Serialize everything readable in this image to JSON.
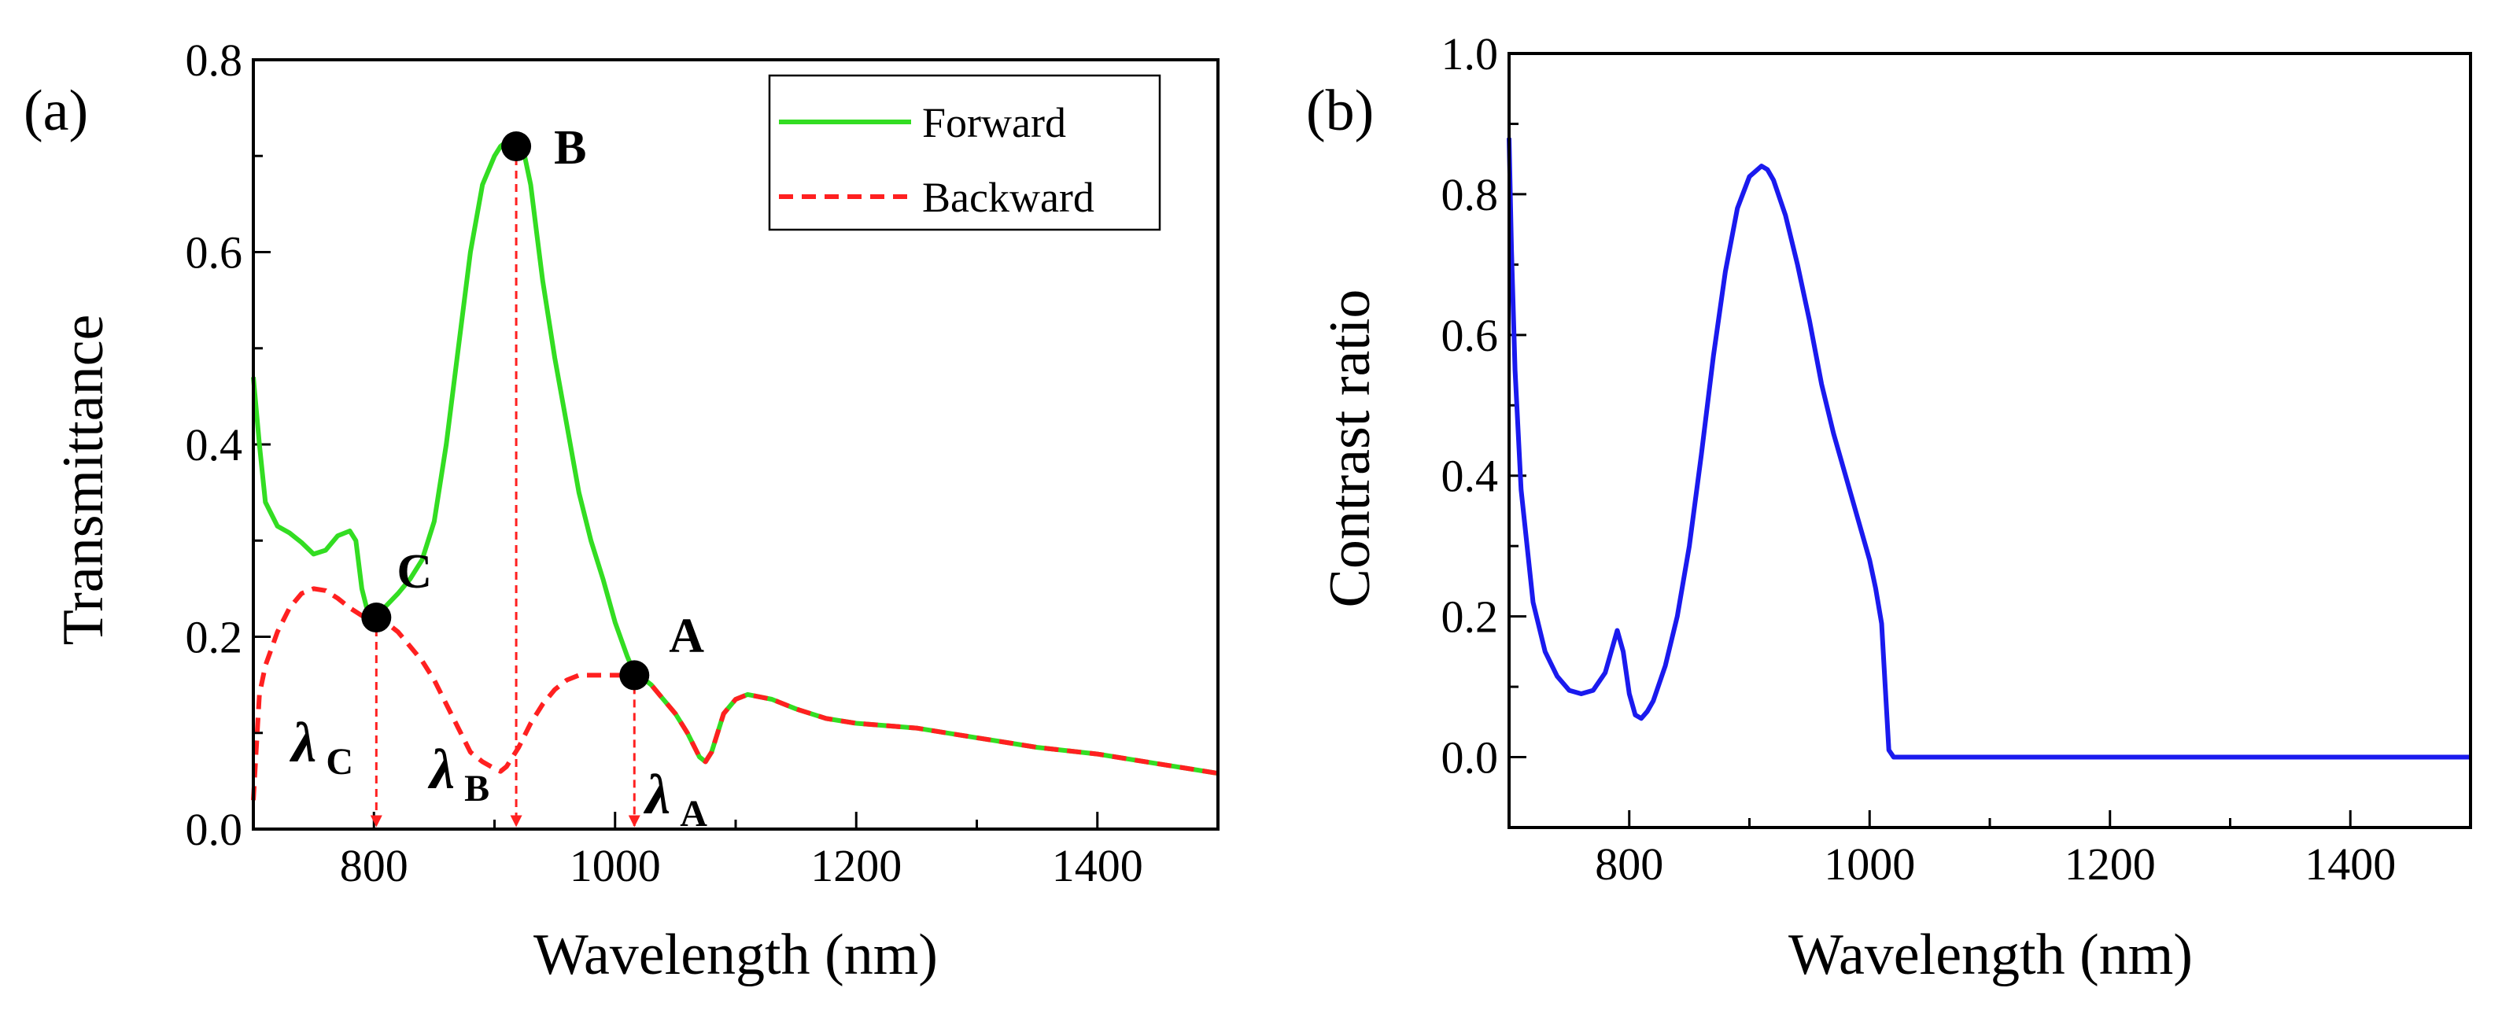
{
  "chart_data": [
    {
      "type": "line",
      "panel_label": "(a)",
      "xlabel": "Wavelength (nm)",
      "ylabel": "Transmittance",
      "xlim": [
        700,
        1500
      ],
      "ylim": [
        0.0,
        0.8
      ],
      "xticks": [
        800,
        1000,
        1200,
        1400
      ],
      "xtick_labels": [
        "800",
        "1000",
        "1200",
        "1400"
      ],
      "yticks": [
        0.0,
        0.2,
        0.4,
        0.6,
        0.8
      ],
      "ytick_labels": [
        "0.0",
        "0.2",
        "0.4",
        "0.6",
        "0.8"
      ],
      "grid": false,
      "legend_position": "top-right",
      "series": [
        {
          "name": "Forward",
          "color": "#33dd22",
          "style": "solid",
          "x": [
            700,
            705,
            710,
            720,
            730,
            740,
            750,
            760,
            770,
            780,
            785,
            790,
            795,
            800,
            805,
            810,
            820,
            830,
            840,
            850,
            860,
            870,
            880,
            890,
            900,
            905,
            910,
            915,
            920,
            925,
            930,
            935,
            940,
            950,
            960,
            970,
            980,
            990,
            1000,
            1010,
            1015,
            1020,
            1030,
            1040,
            1050,
            1060,
            1070,
            1075,
            1080,
            1090,
            1100,
            1110,
            1130,
            1150,
            1175,
            1200,
            1250,
            1300,
            1350,
            1400,
            1450,
            1500
          ],
          "y": [
            0.47,
            0.4,
            0.34,
            0.315,
            0.308,
            0.298,
            0.286,
            0.29,
            0.305,
            0.31,
            0.3,
            0.25,
            0.225,
            0.22,
            0.224,
            0.232,
            0.245,
            0.26,
            0.28,
            0.32,
            0.4,
            0.5,
            0.6,
            0.67,
            0.7,
            0.71,
            0.715,
            0.712,
            0.705,
            0.7,
            0.67,
            0.62,
            0.57,
            0.49,
            0.42,
            0.35,
            0.3,
            0.26,
            0.215,
            0.18,
            0.165,
            0.16,
            0.15,
            0.135,
            0.12,
            0.1,
            0.075,
            0.07,
            0.08,
            0.12,
            0.135,
            0.14,
            0.135,
            0.125,
            0.115,
            0.11,
            0.105,
            0.095,
            0.085,
            0.078,
            0.068,
            0.058
          ]
        },
        {
          "name": "Backward",
          "color": "#ff2020",
          "style": "dashed",
          "x": [
            700,
            705,
            710,
            720,
            730,
            740,
            750,
            760,
            770,
            780,
            790,
            800,
            810,
            820,
            830,
            840,
            850,
            860,
            870,
            880,
            890,
            900,
            905,
            910,
            915,
            920,
            930,
            940,
            950,
            960,
            970,
            980,
            990,
            1000,
            1010,
            1020,
            1030,
            1040,
            1050,
            1060,
            1070,
            1075,
            1080,
            1090,
            1100,
            1110,
            1130,
            1150,
            1175,
            1200,
            1250,
            1300,
            1350,
            1400,
            1450,
            1500
          ],
          "y": [
            0.03,
            0.14,
            0.17,
            0.205,
            0.23,
            0.245,
            0.25,
            0.248,
            0.24,
            0.23,
            0.222,
            0.22,
            0.215,
            0.205,
            0.19,
            0.175,
            0.155,
            0.13,
            0.105,
            0.08,
            0.07,
            0.063,
            0.06,
            0.065,
            0.075,
            0.085,
            0.11,
            0.13,
            0.145,
            0.155,
            0.16,
            0.16,
            0.16,
            0.16,
            0.16,
            0.158,
            0.15,
            0.135,
            0.12,
            0.1,
            0.075,
            0.07,
            0.08,
            0.12,
            0.135,
            0.14,
            0.135,
            0.125,
            0.115,
            0.11,
            0.105,
            0.095,
            0.085,
            0.078,
            0.068,
            0.058
          ]
        }
      ],
      "markers": [
        {
          "label": "B",
          "x": 918,
          "y": 0.71
        },
        {
          "label": "C",
          "x": 802,
          "y": 0.22
        },
        {
          "label": "A",
          "x": 1016,
          "y": 0.16
        }
      ],
      "wavelength_markers": [
        {
          "label": "λ",
          "subscript": "C",
          "x": 802,
          "y_top": 0.22
        },
        {
          "label": "λ",
          "subscript": "B",
          "x": 918,
          "y_top": 0.71
        },
        {
          "label": "λ",
          "subscript": "A",
          "x": 1016,
          "y_top": 0.16
        }
      ],
      "arrow_color": "#ff2020"
    },
    {
      "type": "line",
      "panel_label": "(b)",
      "xlabel": "Wavelength (nm)",
      "ylabel": "Contrast ratio",
      "xlim": [
        700,
        1500
      ],
      "ylim": [
        -0.1,
        1.0
      ],
      "xticks": [
        800,
        1000,
        1200,
        1400
      ],
      "xtick_labels": [
        "800",
        "1000",
        "1200",
        "1400"
      ],
      "yticks": [
        0.0,
        0.2,
        0.4,
        0.6,
        0.8,
        1.0
      ],
      "ytick_labels": [
        "0.0",
        "0.2",
        "0.4",
        "0.6",
        "0.8",
        "1.0"
      ],
      "grid": false,
      "series": [
        {
          "name": "Contrast ratio",
          "color": "#1a1aee",
          "style": "solid",
          "x": [
            700,
            702,
            705,
            710,
            720,
            730,
            740,
            750,
            760,
            770,
            780,
            785,
            790,
            795,
            800,
            805,
            810,
            815,
            820,
            830,
            840,
            850,
            860,
            870,
            880,
            890,
            900,
            910,
            915,
            920,
            930,
            940,
            950,
            960,
            970,
            980,
            990,
            1000,
            1005,
            1010,
            1013,
            1016,
            1020,
            1050,
            1100,
            1150,
            1200,
            1250,
            1300,
            1350,
            1400,
            1450,
            1500
          ],
          "y": [
            0.88,
            0.72,
            0.55,
            0.38,
            0.22,
            0.15,
            0.115,
            0.095,
            0.09,
            0.095,
            0.12,
            0.15,
            0.18,
            0.15,
            0.09,
            0.06,
            0.055,
            0.065,
            0.08,
            0.13,
            0.2,
            0.3,
            0.43,
            0.57,
            0.69,
            0.78,
            0.825,
            0.84,
            0.835,
            0.82,
            0.77,
            0.7,
            0.62,
            0.53,
            0.46,
            0.4,
            0.34,
            0.28,
            0.24,
            0.19,
            0.1,
            0.01,
            0.0,
            0.0,
            0.0,
            0.0,
            0.0,
            0.0,
            0.0,
            0.0,
            0.0,
            0.0,
            0.0
          ]
        }
      ]
    }
  ]
}
